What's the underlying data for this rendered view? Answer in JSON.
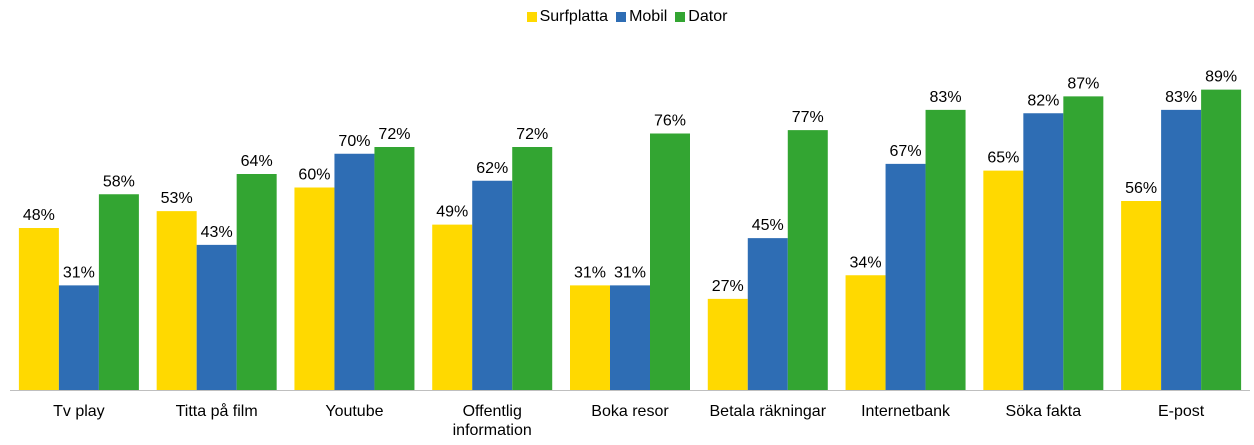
{
  "chart_data": {
    "type": "bar",
    "categories": [
      "Tv play",
      "Titta på film",
      "Youtube",
      "Offentlig information",
      "Boka resor",
      "Betala räkningar",
      "Internetbank",
      "Söka fakta",
      "E-post"
    ],
    "series": [
      {
        "name": "Surfplatta",
        "color": "#ffd900",
        "values": [
          48,
          53,
          60,
          49,
          31,
          27,
          34,
          65,
          56
        ],
        "value_labels": [
          "48%",
          "53%",
          "60%",
          "49%",
          "31%",
          "27%",
          "34%",
          "65%",
          "56%"
        ]
      },
      {
        "name": "Mobil",
        "color": "#2e6db4",
        "values": [
          31,
          43,
          70,
          62,
          31,
          45,
          67,
          82,
          83
        ],
        "value_labels": [
          "31%",
          "43%",
          "70%",
          "62%",
          "31%",
          "45%",
          "67%",
          "82%",
          "83%"
        ]
      },
      {
        "name": "Dator",
        "color": "#33a532",
        "values": [
          58,
          64,
          72,
          72,
          76,
          77,
          83,
          87,
          89
        ],
        "value_labels": [
          "58%",
          "64%",
          "72%",
          "72%",
          "76%",
          "77%",
          "83%",
          "87%",
          "89%"
        ]
      }
    ],
    "legend": "top"
  }
}
